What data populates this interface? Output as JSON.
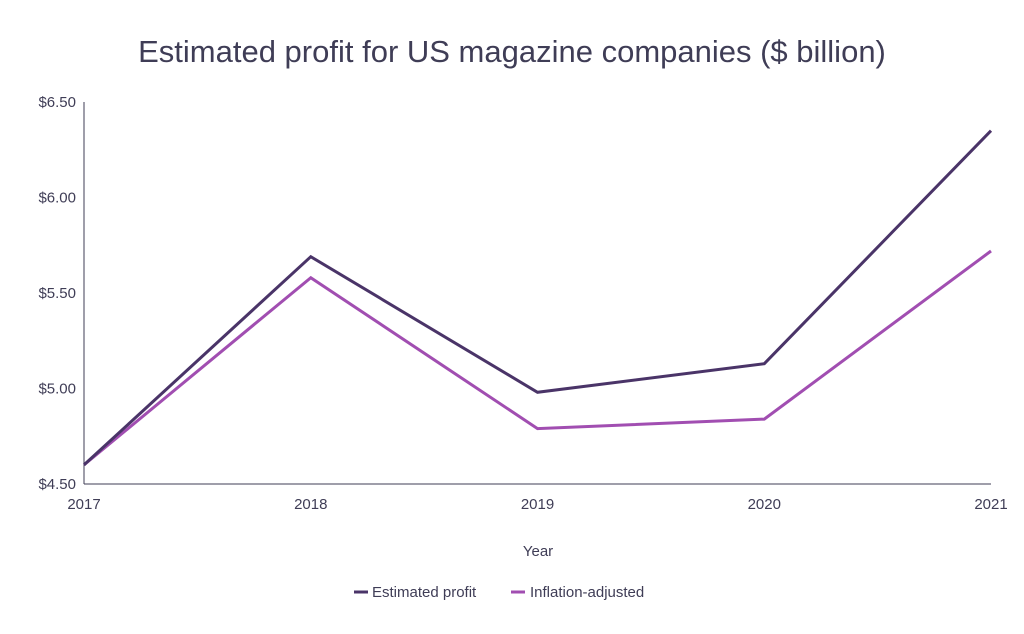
{
  "chart_data": {
    "type": "line",
    "title": "Estimated profit for US magazine companies ($ billion)",
    "xlabel": "Year",
    "ylabel": "",
    "categories": [
      "2017",
      "2018",
      "2019",
      "2020",
      "2021"
    ],
    "ylim": [
      4.5,
      6.5
    ],
    "y_ticks": [
      "$4.50",
      "$5.00",
      "$5.50",
      "$6.00",
      "$6.50"
    ],
    "y_tick_values": [
      4.5,
      5.0,
      5.5,
      6.0,
      6.5
    ],
    "grid": false,
    "legend_position": "bottom",
    "series": [
      {
        "name": "Estimated profit",
        "color": "#4a3468",
        "values": [
          4.6,
          5.69,
          4.98,
          5.13,
          6.35
        ]
      },
      {
        "name": "Inflation-adjusted",
        "color": "#a14eb1",
        "values": [
          4.6,
          5.58,
          4.79,
          4.84,
          5.72
        ]
      }
    ],
    "axis_color": "#3f3d56"
  }
}
